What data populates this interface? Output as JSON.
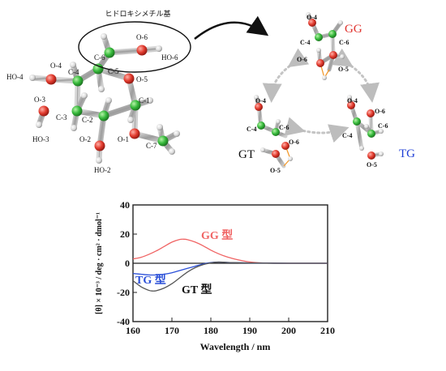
{
  "molecule": {
    "group_label": "ヒドロキシメチル基",
    "atoms": {
      "O6": "O-6",
      "HO6": "HO-6",
      "C6": "C-6",
      "C5": "C-5",
      "O5": "O-5",
      "O4": "O-4",
      "HO4": "HO-4",
      "C4": "C-4",
      "C1": "C-1",
      "O3": "O-3",
      "C3": "C-3",
      "C2": "C-2",
      "HO3": "HO-3",
      "O2": "O-2",
      "O1": "O-1",
      "C7": "C-7",
      "HO2": "HO-2"
    }
  },
  "conformers": {
    "gg": {
      "name": "GG",
      "color": "#e0342f",
      "labels": [
        "O-4",
        "C-4",
        "C-6",
        "O-6",
        "O-5"
      ]
    },
    "gt": {
      "name": "GT",
      "color": "#111111",
      "labels": [
        "O-4",
        "C-4",
        "C-6",
        "O-6",
        "O-5"
      ]
    },
    "tg": {
      "name": "TG",
      "color": "#1f3fd6",
      "labels": [
        "O-4",
        "O-6",
        "C-6",
        "C-4",
        "O-5"
      ]
    }
  },
  "chart_data": {
    "type": "line",
    "xlabel": "Wavelength / nm",
    "ylabel": "[θ] × 10⁻³ / deg · cm² · dmol⁻¹",
    "xlim": [
      160,
      210
    ],
    "ylim": [
      -40,
      40
    ],
    "xticks": [
      160,
      170,
      180,
      190,
      200,
      210
    ],
    "yticks": [
      40,
      20,
      0,
      -20,
      -40
    ],
    "series": [
      {
        "name": "GG 型",
        "color": "#f06464",
        "x": [
          160,
          162,
          164,
          166,
          168,
          170,
          172,
          173,
          174,
          176,
          178,
          180,
          182,
          184,
          186,
          188,
          190,
          192,
          195,
          200,
          205,
          210
        ],
        "y": [
          3,
          4,
          6,
          8.5,
          11.5,
          14.5,
          16.3,
          16.5,
          16.2,
          14.5,
          12,
          9,
          6.5,
          4.5,
          3,
          1.8,
          0.9,
          0.4,
          0.1,
          0,
          0,
          0
        ]
      },
      {
        "name": "TG 型",
        "color": "#2a4fd8",
        "x": [
          160,
          162,
          164,
          166,
          168,
          170,
          172,
          174,
          176,
          178,
          180,
          182,
          185,
          190,
          200,
          210
        ],
        "y": [
          -7,
          -7.5,
          -8,
          -8,
          -7.5,
          -6.5,
          -5,
          -3.5,
          -2,
          -0.5,
          0.5,
          0.8,
          0.5,
          0.2,
          0,
          0
        ]
      },
      {
        "name": "GT 型",
        "color": "#555555",
        "x": [
          160,
          162,
          164,
          165,
          166,
          168,
          170,
          172,
          174,
          176,
          178,
          180,
          182,
          185,
          190,
          200,
          210
        ],
        "y": [
          -12,
          -16,
          -18.5,
          -19,
          -18.8,
          -17,
          -14,
          -10,
          -6,
          -3,
          -1,
          0.3,
          0.8,
          0.5,
          0.2,
          0,
          0
        ]
      }
    ]
  }
}
